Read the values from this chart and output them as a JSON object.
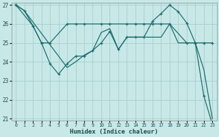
{
  "xlabel": "Humidex (Indice chaleur)",
  "bg_color": "#c8e8e8",
  "grid_color": "#aad0d0",
  "line_color": "#1a6b6b",
  "xlim": [
    0,
    23
  ],
  "ylim": [
    21,
    27
  ],
  "yticks": [
    21,
    22,
    23,
    24,
    25,
    26,
    27
  ],
  "xticks": [
    0,
    1,
    2,
    3,
    4,
    5,
    6,
    7,
    8,
    9,
    10,
    11,
    12,
    13,
    14,
    15,
    16,
    17,
    18,
    19,
    20,
    21,
    22,
    23
  ],
  "line1_x": [
    0,
    1,
    2,
    3,
    4,
    5,
    6,
    7,
    8,
    9,
    10,
    11,
    12,
    13,
    14,
    15,
    16,
    17,
    18,
    19,
    20,
    21,
    22,
    23
  ],
  "line1_y": [
    27.0,
    26.7,
    25.9,
    25.0,
    23.9,
    23.35,
    23.9,
    24.3,
    24.3,
    24.6,
    25.0,
    25.6,
    24.65,
    25.3,
    25.3,
    25.3,
    26.15,
    26.55,
    27.0,
    26.65,
    26.05,
    25.0,
    22.2,
    20.7
  ],
  "line2_x": [
    0,
    2,
    3,
    4,
    6,
    7,
    8,
    10,
    11,
    13,
    14,
    15,
    16,
    17,
    18,
    20,
    21,
    22,
    23
  ],
  "line2_y": [
    27.0,
    25.9,
    25.0,
    25.0,
    26.0,
    26.0,
    26.0,
    26.0,
    26.0,
    26.0,
    26.0,
    26.0,
    26.0,
    26.0,
    26.0,
    25.0,
    25.0,
    25.0,
    25.0
  ],
  "line3_x": [
    0,
    1,
    2,
    3,
    4,
    5,
    6,
    7,
    8,
    9,
    10,
    11,
    12,
    13,
    14,
    15,
    16,
    17,
    18,
    19,
    20,
    21,
    22,
    23
  ],
  "line3_y": [
    27.0,
    26.7,
    26.1,
    25.5,
    24.9,
    24.3,
    23.7,
    24.0,
    24.35,
    24.6,
    25.55,
    25.75,
    24.65,
    25.3,
    25.3,
    25.3,
    25.3,
    25.3,
    26.0,
    25.0,
    25.0,
    25.0,
    23.6,
    21.0
  ]
}
